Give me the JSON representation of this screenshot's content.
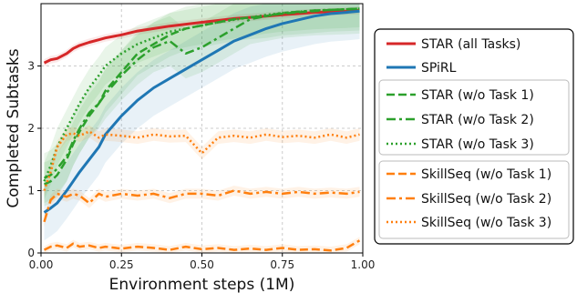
{
  "chart_data": {
    "type": "line",
    "title": "",
    "xlabel": "Environment steps (1M)",
    "ylabel": "Completed Subtasks",
    "xlim": [
      0,
      1.0
    ],
    "ylim": [
      0,
      4.0
    ],
    "xticks": [
      0.0,
      0.25,
      0.5,
      0.75,
      1.0
    ],
    "xtick_labels": [
      "0.00",
      "0.25",
      "0.50",
      "0.75",
      "1.00"
    ],
    "yticks": [
      0,
      1,
      2,
      3
    ],
    "ytick_labels": [
      "0",
      "1",
      "2",
      "3"
    ],
    "grid": true,
    "legend_position": "right",
    "legend_groups": [
      [
        "STAR (all Tasks)",
        "SPiRL"
      ],
      [
        "STAR (w/o Task 1)",
        "STAR (w/o Task 2)",
        "STAR (w/o Task 3)"
      ],
      [
        "SkillSeq (w/o Task 1)",
        "SkillSeq (w/o Task 2)",
        "SkillSeq (w/o Task 3)"
      ]
    ],
    "x": [
      0.01,
      0.03,
      0.05,
      0.08,
      0.1,
      0.12,
      0.15,
      0.18,
      0.2,
      0.25,
      0.3,
      0.35,
      0.4,
      0.45,
      0.5,
      0.55,
      0.6,
      0.65,
      0.7,
      0.75,
      0.8,
      0.85,
      0.9,
      0.95,
      0.99
    ],
    "series": [
      {
        "name": "STAR (all Tasks)",
        "color": "#d62728",
        "style": "solid",
        "width": 3,
        "values": [
          3.05,
          3.1,
          3.12,
          3.2,
          3.28,
          3.33,
          3.38,
          3.42,
          3.45,
          3.5,
          3.56,
          3.6,
          3.64,
          3.67,
          3.7,
          3.73,
          3.76,
          3.78,
          3.8,
          3.82,
          3.84,
          3.86,
          3.87,
          3.88,
          3.89
        ],
        "band": 0.06
      },
      {
        "name": "SPiRL",
        "color": "#1f77b4",
        "style": "solid",
        "width": 3,
        "values": [
          0.65,
          0.72,
          0.8,
          1.0,
          1.15,
          1.3,
          1.5,
          1.7,
          1.9,
          2.2,
          2.45,
          2.65,
          2.8,
          2.95,
          3.1,
          3.25,
          3.4,
          3.5,
          3.6,
          3.68,
          3.74,
          3.8,
          3.84,
          3.86,
          3.88
        ],
        "band": 0.45
      },
      {
        "name": "STAR (w/o Task 1)",
        "color": "#2ca02c",
        "style": "dashed",
        "width": 2.5,
        "values": [
          1.1,
          1.15,
          1.25,
          1.5,
          1.75,
          1.95,
          2.2,
          2.4,
          2.6,
          2.9,
          3.2,
          3.35,
          3.5,
          3.6,
          3.65,
          3.7,
          3.75,
          3.78,
          3.8,
          3.84,
          3.86,
          3.88,
          3.9,
          3.91,
          3.92
        ],
        "band": 0.35
      },
      {
        "name": "STAR (w/o Task 2)",
        "color": "#2ca02c",
        "style": "dashdot",
        "width": 2.5,
        "values": [
          1.2,
          1.25,
          1.35,
          1.55,
          1.8,
          2.0,
          2.25,
          2.4,
          2.55,
          2.85,
          3.1,
          3.3,
          3.4,
          3.2,
          3.3,
          3.45,
          3.6,
          3.75,
          3.8,
          3.85,
          3.87,
          3.89,
          3.9,
          3.91,
          3.92
        ],
        "band": 0.4
      },
      {
        "name": "STAR (w/o Task 3)",
        "color": "#2ca02c",
        "style": "dotted",
        "width": 2.5,
        "values": [
          1.15,
          1.4,
          1.7,
          2.0,
          2.2,
          2.4,
          2.65,
          2.85,
          3.0,
          3.2,
          3.35,
          3.45,
          3.55,
          3.6,
          3.65,
          3.7,
          3.74,
          3.78,
          3.82,
          3.85,
          3.87,
          3.89,
          3.9,
          3.91,
          3.92
        ],
        "band": 0.3
      },
      {
        "name": "SkillSeq (w/o Task 1)",
        "color": "#ff7f0e",
        "style": "dashed",
        "width": 2.5,
        "values": [
          0.05,
          0.1,
          0.12,
          0.08,
          0.15,
          0.1,
          0.12,
          0.08,
          0.1,
          0.07,
          0.1,
          0.08,
          0.05,
          0.1,
          0.06,
          0.08,
          0.05,
          0.07,
          0.05,
          0.08,
          0.05,
          0.06,
          0.04,
          0.08,
          0.2
        ],
        "band": 0.06
      },
      {
        "name": "SkillSeq (w/o Task 2)",
        "color": "#ff7f0e",
        "style": "dashdot",
        "width": 2.5,
        "values": [
          0.5,
          0.85,
          0.95,
          0.9,
          0.95,
          0.92,
          0.8,
          0.95,
          0.9,
          0.95,
          0.92,
          0.95,
          0.88,
          0.95,
          0.95,
          0.92,
          1.0,
          0.95,
          0.98,
          0.95,
          0.98,
          0.95,
          0.97,
          0.95,
          0.98
        ],
        "band": 0.08
      },
      {
        "name": "SkillSeq (w/o Task 3)",
        "color": "#ff7f0e",
        "style": "dotted",
        "width": 2.5,
        "values": [
          1.0,
          1.3,
          1.7,
          1.9,
          1.92,
          1.88,
          1.95,
          1.85,
          1.9,
          1.88,
          1.85,
          1.9,
          1.87,
          1.88,
          1.6,
          1.85,
          1.88,
          1.85,
          1.9,
          1.86,
          1.88,
          1.85,
          1.9,
          1.85,
          1.9
        ],
        "band": 0.1
      }
    ]
  }
}
